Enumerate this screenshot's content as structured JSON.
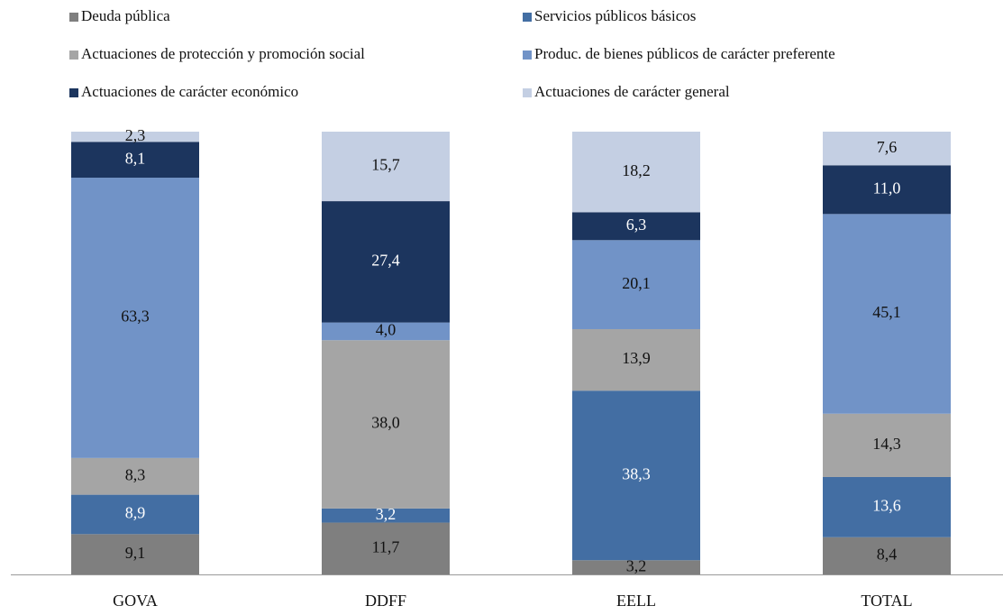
{
  "chart_data": {
    "type": "stacked_bar",
    "categories": [
      "GOVA",
      "DDFF",
      "EELL",
      "TOTAL"
    ],
    "series": [
      {
        "name": "Deuda pública",
        "color": "#7f7f7f",
        "values": [
          9.1,
          11.7,
          3.2,
          8.4
        ],
        "value_labels": [
          "9,1",
          "11,7",
          "3,2",
          "8,4"
        ]
      },
      {
        "name": "Servicios públicos básicos",
        "color": "#436ea3",
        "values": [
          8.9,
          3.2,
          38.3,
          13.6
        ],
        "value_labels": [
          "8,9",
          "3,2",
          "38,3",
          "13,6"
        ]
      },
      {
        "name": "Actuaciones de protección y promoción social",
        "color": "#a5a5a5",
        "values": [
          8.3,
          38.0,
          13.9,
          14.3
        ],
        "value_labels": [
          "8,3",
          "38,0",
          "13,9",
          "14,3"
        ]
      },
      {
        "name": "Produc. de bienes públicos de carácter preferente",
        "color": "#7193c7",
        "values": [
          63.3,
          4.0,
          20.1,
          45.1
        ],
        "value_labels": [
          "63,3",
          "4,0",
          "20,1",
          "45,1"
        ]
      },
      {
        "name": "Actuaciones de carácter económico",
        "color": "#1c355e",
        "values": [
          8.1,
          27.4,
          6.3,
          11.0
        ],
        "value_labels": [
          "8,1",
          "27,4",
          "6,3",
          "11,0"
        ]
      },
      {
        "name": "Actuaciones de carácter general",
        "color": "#c4cfe3",
        "values": [
          2.3,
          15.7,
          18.2,
          7.6
        ],
        "value_labels": [
          "2,3",
          "15,7",
          "18,2",
          "7,6"
        ]
      }
    ]
  }
}
